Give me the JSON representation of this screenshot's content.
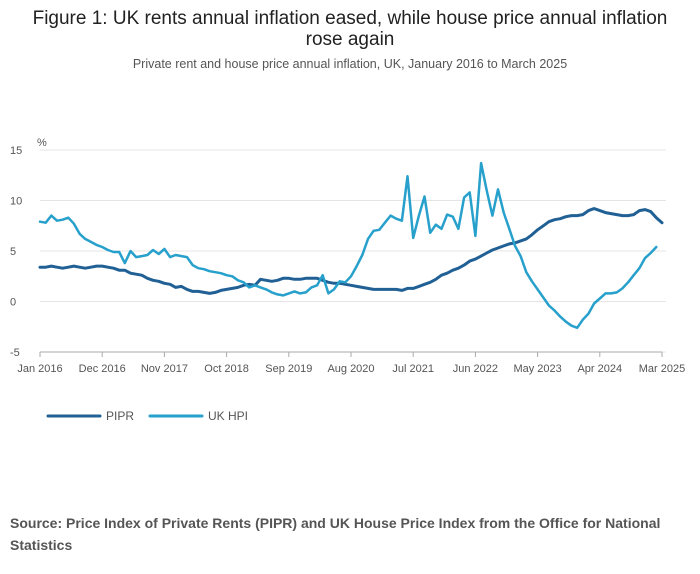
{
  "chart_data": {
    "type": "line",
    "title": "Figure 1: UK rents annual inflation eased, while house price annual inflation rose again",
    "subtitle": "Private rent and house price annual inflation, UK, January 2016 to March 2025",
    "ylabel": "%",
    "ylim": [
      -5,
      15
    ],
    "yticks": [
      -5,
      0,
      5,
      10,
      15
    ],
    "xticks": [
      {
        "label": "Jan 2016",
        "index": 0
      },
      {
        "label": "Dec 2016",
        "index": 11
      },
      {
        "label": "Nov 2017",
        "index": 22
      },
      {
        "label": "Oct 2018",
        "index": 33
      },
      {
        "label": "Sep 2019",
        "index": 44
      },
      {
        "label": "Aug 2020",
        "index": 55
      },
      {
        "label": "Jul 2021",
        "index": 66
      },
      {
        "label": "Jun 2022",
        "index": 77
      },
      {
        "label": "May 2023",
        "index": 88
      },
      {
        "label": "Apr 2024",
        "index": 99
      },
      {
        "label": "Mar 2025",
        "index": 110
      }
    ],
    "grid": true,
    "legend_position": "bottom-left",
    "series": [
      {
        "name": "PIPR",
        "color": "#206095",
        "values": [
          3.4,
          3.4,
          3.5,
          3.4,
          3.3,
          3.4,
          3.5,
          3.4,
          3.3,
          3.4,
          3.5,
          3.5,
          3.4,
          3.3,
          3.1,
          3.1,
          2.8,
          2.7,
          2.6,
          2.3,
          2.1,
          2.0,
          1.8,
          1.7,
          1.4,
          1.5,
          1.2,
          1.0,
          1.0,
          0.9,
          0.8,
          0.9,
          1.1,
          1.2,
          1.3,
          1.4,
          1.6,
          1.7,
          1.6,
          2.2,
          2.1,
          2.0,
          2.1,
          2.3,
          2.3,
          2.2,
          2.2,
          2.3,
          2.3,
          2.3,
          2.1,
          1.9,
          1.8,
          1.8,
          1.7,
          1.6,
          1.5,
          1.4,
          1.3,
          1.2,
          1.2,
          1.2,
          1.2,
          1.2,
          1.1,
          1.3,
          1.3,
          1.5,
          1.7,
          1.9,
          2.2,
          2.6,
          2.8,
          3.1,
          3.3,
          3.6,
          4.0,
          4.2,
          4.5,
          4.8,
          5.1,
          5.3,
          5.5,
          5.7,
          5.8,
          6.0,
          6.2,
          6.6,
          7.1,
          7.5,
          7.9,
          8.1,
          8.2,
          8.4,
          8.5,
          8.5,
          8.6,
          9.0,
          9.2,
          9.0,
          8.8,
          8.7,
          8.6,
          8.5,
          8.5,
          8.6,
          9.0,
          9.1,
          8.9,
          8.3,
          7.8
        ]
      },
      {
        "name": "UK HPI",
        "color": "#27a0cc",
        "values": [
          7.9,
          7.8,
          8.5,
          8.0,
          8.1,
          8.3,
          7.7,
          6.7,
          6.2,
          5.9,
          5.6,
          5.4,
          5.1,
          4.9,
          4.9,
          3.8,
          5.0,
          4.4,
          4.5,
          4.6,
          5.1,
          4.7,
          5.2,
          4.4,
          4.6,
          4.5,
          4.4,
          3.6,
          3.3,
          3.2,
          3.0,
          2.9,
          2.8,
          2.6,
          2.5,
          2.1,
          1.9,
          1.4,
          1.6,
          1.4,
          1.2,
          0.9,
          0.7,
          0.6,
          0.8,
          1.0,
          0.8,
          0.9,
          1.4,
          1.6,
          2.6,
          0.8,
          1.2,
          2.0,
          1.9,
          2.5,
          3.5,
          4.6,
          6.2,
          7.0,
          7.1,
          7.8,
          8.5,
          8.2,
          8.0,
          12.4,
          6.3,
          8.5,
          10.4,
          6.8,
          7.6,
          7.2,
          8.6,
          8.4,
          7.2,
          10.3,
          10.8,
          6.5,
          13.7,
          11.0,
          8.5,
          11.1,
          8.8,
          7.2,
          5.5,
          4.5,
          2.9,
          2.0,
          1.2,
          0.4,
          -0.4,
          -0.9,
          -1.5,
          -2.0,
          -2.4,
          -2.6,
          -1.8,
          -1.2,
          -0.2,
          0.3,
          0.8,
          0.8,
          0.9,
          1.3,
          1.9,
          2.6,
          3.3,
          4.3,
          4.8,
          5.4
        ]
      }
    ],
    "source": "Source: Price Index of Private Rents (PIPR) and UK House Price Index from the Office for National Statistics"
  }
}
